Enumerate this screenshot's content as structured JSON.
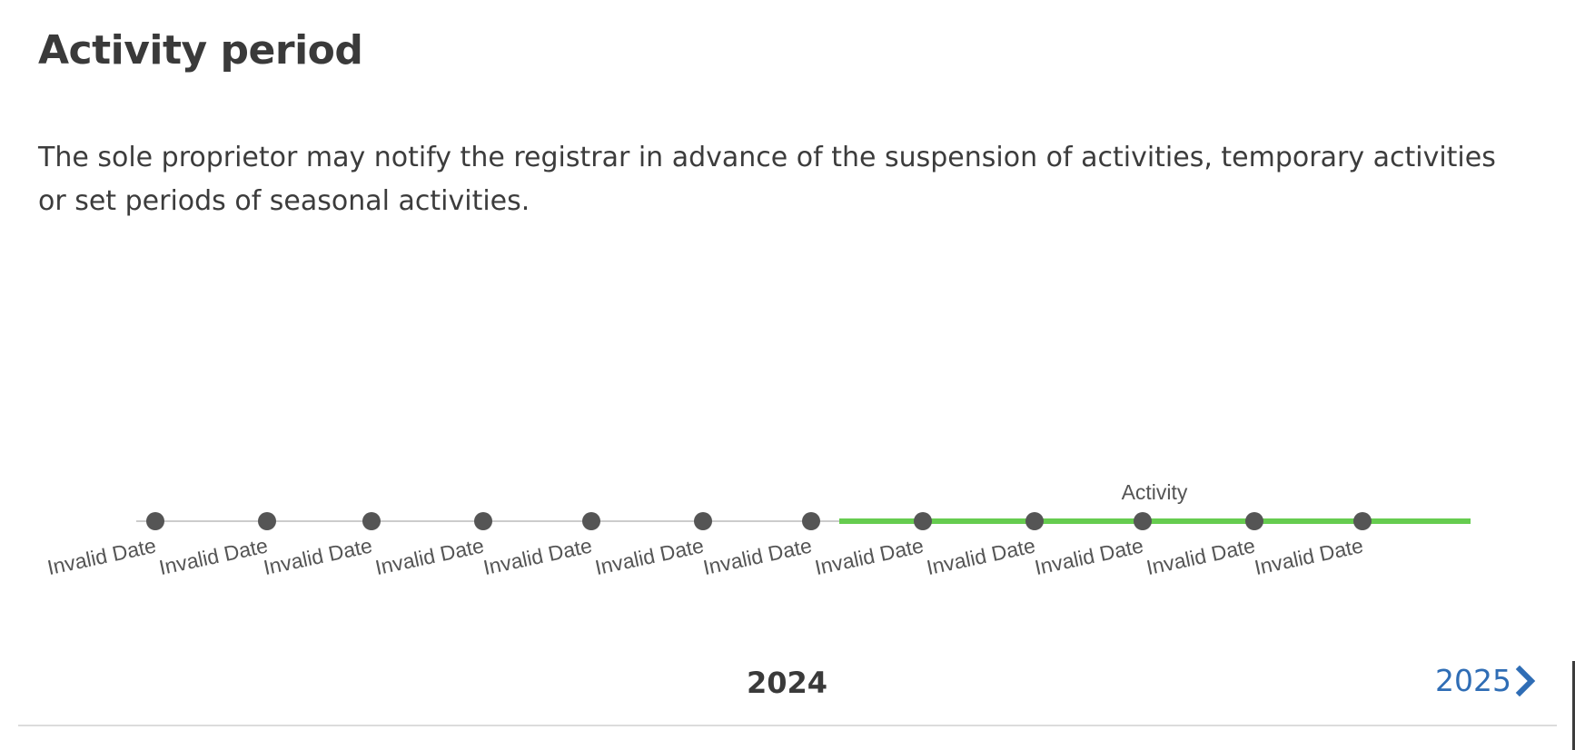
{
  "header": {
    "title": "Activity period"
  },
  "description": "The sole proprietor may notify the registrar in advance of the suspension of activities, temporary activities or set periods of seasonal activities.",
  "timeline": {
    "ticks": [
      {
        "label": "Invalid Date",
        "active": false
      },
      {
        "label": "Invalid Date",
        "active": false
      },
      {
        "label": "Invalid Date",
        "active": false
      },
      {
        "label": "Invalid Date",
        "active": false
      },
      {
        "label": "Invalid Date",
        "active": false
      },
      {
        "label": "Invalid Date",
        "active": false
      },
      {
        "label": "Invalid Date",
        "active": false
      },
      {
        "label": "Invalid Date",
        "active": true
      },
      {
        "label": "Invalid Date",
        "active": true
      },
      {
        "label": "Invalid Date",
        "active": true
      },
      {
        "label": "Invalid Date",
        "active": true
      },
      {
        "label": "Invalid Date",
        "active": true
      }
    ],
    "period_label": "Activity",
    "colors": {
      "active": "#66cc4f",
      "inactive": "#cccccc",
      "dot": "#555555"
    }
  },
  "navigation": {
    "current_year": "2024",
    "next_year": "2025",
    "next_icon": "chevron-right-icon"
  }
}
